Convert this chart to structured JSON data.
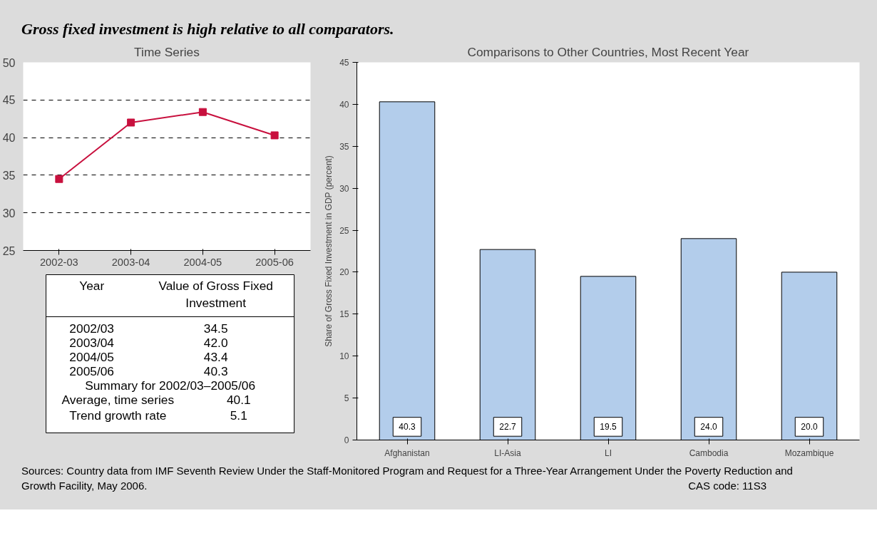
{
  "chart_data": [
    {
      "type": "line",
      "title": "Gross fixed investment is high relative to all comparators.",
      "subtitle": "Time Series",
      "categories": [
        "2002-03",
        "2003-04",
        "2004-05",
        "2005-06"
      ],
      "series": [
        {
          "color": "#c8103e",
          "values": [
            34.5,
            42.0,
            43.4,
            40.3
          ]
        }
      ],
      "ylim": [
        25,
        50
      ],
      "yticks": [
        25,
        30,
        35,
        40,
        45,
        50
      ],
      "grid": "y",
      "marker": "square",
      "line_style": "solid",
      "annotations": [
        "Year",
        "Value of Gross Fixed Investment",
        "2002/03",
        "2003/04",
        "2004/05",
        "2005/06",
        "34.5",
        "42.0",
        "43.4",
        "40.3",
        "Summary for 2002/03–2005/06",
        "Average, time series",
        "40.1",
        "Trend growth rate",
        "5.1"
      ]
    },
    {
      "type": "bar",
      "title": "Comparisons to Other Countries, Most Recent Year",
      "ylabel": "Share of Gross Fixed Investment in GDP (percent)",
      "categories": [
        "Afghanistan",
        "LI-Asia",
        "LI",
        "Cambodia",
        "Mozambique"
      ],
      "values": [
        40.3,
        22.7,
        19.5,
        24.0,
        20.0
      ],
      "value_labels": [
        "40.3",
        "22.7",
        "19.5",
        "24.0",
        "20.0"
      ],
      "color": "#b3cdeb",
      "ylim": [
        0,
        45
      ],
      "yticks": [
        0,
        5,
        10,
        15,
        20,
        25,
        30,
        35,
        40,
        45
      ],
      "grid": false,
      "annotations": [
        "Sources: Country data from IMF Seventh Review Under the Staff-Monitored Program and Request for a Three-Year Arrangement Under the Poverty Reduction and Growth Facility, May 2006.",
        "CAS code: 11S3"
      ]
    }
  ]
}
